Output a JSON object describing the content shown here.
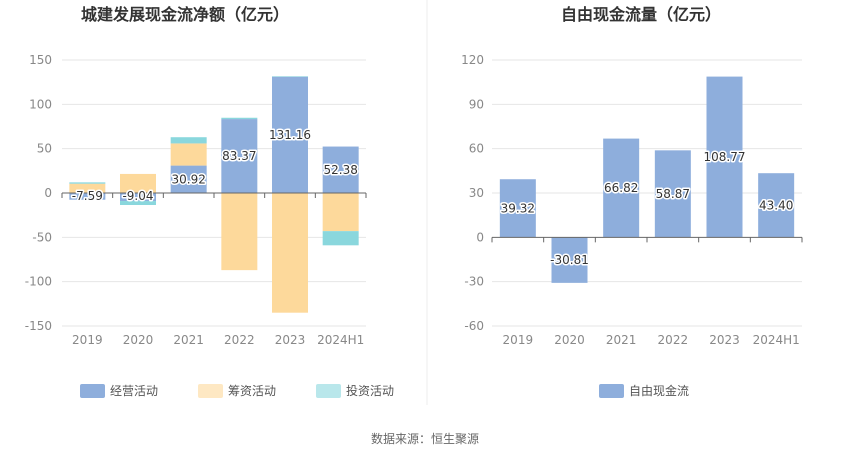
{
  "source_text": "数据来源：恒生聚源",
  "chart_data": [
    {
      "type": "bar",
      "stacked": true,
      "title": "城建发展现金流净额（亿元）",
      "categories": [
        "2019",
        "2020",
        "2021",
        "2022",
        "2023",
        "2024H1"
      ],
      "ylim": [
        -150,
        150
      ],
      "yticks": [
        150,
        100,
        50,
        0,
        -50,
        -100,
        -150
      ],
      "series": [
        {
          "name": "经营活动",
          "color": "#8eaedc",
          "values": [
            -7.59,
            -9.04,
            30.92,
            83.37,
            131.16,
            52.38
          ]
        },
        {
          "name": "筹资活动",
          "color": "#fdd99b",
          "values": [
            10.5,
            21.5,
            25.0,
            -87.0,
            -135.0,
            -43.0
          ]
        },
        {
          "name": "投资活动",
          "color": "#8ad7dd",
          "values": [
            1.5,
            -4.5,
            7.0,
            1.5,
            0.5,
            -16.0
          ]
        }
      ],
      "data_labels": [
        "-7.59",
        "-9.04",
        "30.92",
        "83.37",
        "131.16",
        "52.38"
      ],
      "legend": [
        "经营活动",
        "筹资活动",
        "投资活动"
      ],
      "legend_position": "bottom"
    },
    {
      "type": "bar",
      "title": "自由现金流量（亿元）",
      "categories": [
        "2019",
        "2020",
        "2021",
        "2022",
        "2023",
        "2024H1"
      ],
      "ylim": [
        -60,
        120
      ],
      "yticks": [
        120,
        90,
        60,
        30,
        0,
        -30,
        -60
      ],
      "series": [
        {
          "name": "自由现金流",
          "color": "#8eaedc",
          "values": [
            39.32,
            -30.81,
            66.82,
            58.87,
            108.77,
            43.4
          ]
        }
      ],
      "data_labels": [
        "39.32",
        "-30.81",
        "66.82",
        "58.87",
        "108.77",
        "43.40"
      ],
      "legend": [
        "自由现金流"
      ],
      "legend_position": "bottom"
    }
  ]
}
